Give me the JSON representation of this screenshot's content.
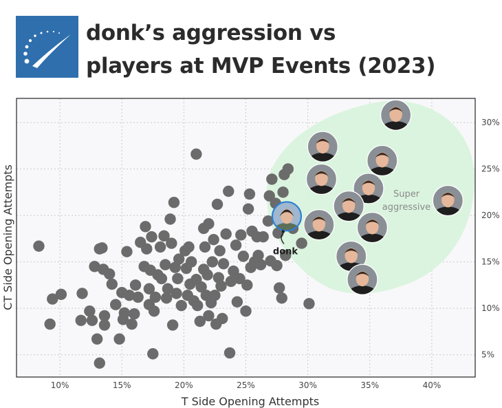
{
  "header": {
    "title_line1": "donk’s aggression vs",
    "title_line2": "players at MVP Events (2023)",
    "logo_icon": "hltv-logo-icon"
  },
  "colors": {
    "logo_bg": "#2f6fad",
    "point": "#6b6b6b",
    "zone": "#d8f3dc",
    "plot_bg": "#f8f8fa",
    "grid": "#c8c8c8",
    "highlight_ring": "#2d7fd3"
  },
  "chart_data": {
    "type": "scatter",
    "xlabel": "T Side Opening Attempts",
    "ylabel": "CT Side Opening Attempts",
    "xlim": [
      6.5,
      43.5
    ],
    "ylim": [
      2.6,
      32.6
    ],
    "x_ticks": [
      10,
      15,
      20,
      25,
      30,
      35,
      40
    ],
    "y_ticks": [
      5,
      10,
      15,
      20,
      25,
      30
    ],
    "x_tick_labels": [
      "10%",
      "15%",
      "20%",
      "25%",
      "30%",
      "35%",
      "40%"
    ],
    "y_tick_labels": [
      "5%",
      "10%",
      "15%",
      "20%",
      "25%",
      "30%"
    ],
    "grid": true,
    "zone_label_line1": "Super",
    "zone_label_line2": "aggressive",
    "highlight": {
      "label": "donk",
      "x": 28.3,
      "y": 19.9
    },
    "avatar_points": [
      {
        "x": 37.1,
        "y": 30.8
      },
      {
        "x": 31.2,
        "y": 27.4
      },
      {
        "x": 36.0,
        "y": 25.9
      },
      {
        "x": 31.1,
        "y": 23.9
      },
      {
        "x": 34.9,
        "y": 22.9
      },
      {
        "x": 41.3,
        "y": 21.6
      },
      {
        "x": 33.3,
        "y": 21.0
      },
      {
        "x": 30.9,
        "y": 19.0
      },
      {
        "x": 35.2,
        "y": 18.7
      },
      {
        "x": 33.5,
        "y": 15.6
      },
      {
        "x": 34.4,
        "y": 13.1
      }
    ],
    "points": [
      {
        "x": 8.3,
        "y": 16.7
      },
      {
        "x": 9.2,
        "y": 8.3
      },
      {
        "x": 9.4,
        "y": 11.0
      },
      {
        "x": 10.1,
        "y": 11.5
      },
      {
        "x": 11.7,
        "y": 8.7
      },
      {
        "x": 11.8,
        "y": 11.6
      },
      {
        "x": 12.4,
        "y": 9.7
      },
      {
        "x": 12.6,
        "y": 8.7
      },
      {
        "x": 12.8,
        "y": 14.5
      },
      {
        "x": 13.0,
        "y": 6.7
      },
      {
        "x": 13.2,
        "y": 4.1
      },
      {
        "x": 13.2,
        "y": 16.4
      },
      {
        "x": 13.4,
        "y": 16.5
      },
      {
        "x": 13.5,
        "y": 14.2
      },
      {
        "x": 13.6,
        "y": 9.2
      },
      {
        "x": 13.6,
        "y": 8.2
      },
      {
        "x": 14.0,
        "y": 13.7
      },
      {
        "x": 14.2,
        "y": 12.6
      },
      {
        "x": 14.5,
        "y": 10.4
      },
      {
        "x": 14.8,
        "y": 6.7
      },
      {
        "x": 15.0,
        "y": 11.7
      },
      {
        "x": 15.1,
        "y": 8.8
      },
      {
        "x": 15.2,
        "y": 9.5
      },
      {
        "x": 15.4,
        "y": 16.1
      },
      {
        "x": 15.6,
        "y": 11.4
      },
      {
        "x": 15.8,
        "y": 8.3
      },
      {
        "x": 16.0,
        "y": 9.4
      },
      {
        "x": 16.1,
        "y": 12.5
      },
      {
        "x": 16.3,
        "y": 11.2
      },
      {
        "x": 16.5,
        "y": 17.1
      },
      {
        "x": 16.8,
        "y": 14.5
      },
      {
        "x": 16.9,
        "y": 18.8
      },
      {
        "x": 17.0,
        "y": 16.4
      },
      {
        "x": 17.2,
        "y": 12.1
      },
      {
        "x": 17.2,
        "y": 10.4
      },
      {
        "x": 17.3,
        "y": 14.1
      },
      {
        "x": 17.4,
        "y": 17.7
      },
      {
        "x": 17.5,
        "y": 5.1
      },
      {
        "x": 17.6,
        "y": 9.7
      },
      {
        "x": 17.7,
        "y": 11.2
      },
      {
        "x": 17.9,
        "y": 13.6
      },
      {
        "x": 18.1,
        "y": 16.6
      },
      {
        "x": 18.2,
        "y": 13.2
      },
      {
        "x": 18.4,
        "y": 17.8
      },
      {
        "x": 18.5,
        "y": 14.7
      },
      {
        "x": 18.6,
        "y": 11.1
      },
      {
        "x": 18.7,
        "y": 12.1
      },
      {
        "x": 18.9,
        "y": 19.6
      },
      {
        "x": 19.0,
        "y": 17.0
      },
      {
        "x": 19.1,
        "y": 8.2
      },
      {
        "x": 19.2,
        "y": 21.4
      },
      {
        "x": 19.3,
        "y": 14.4
      },
      {
        "x": 19.4,
        "y": 11.6
      },
      {
        "x": 19.5,
        "y": 13.2
      },
      {
        "x": 19.6,
        "y": 15.3
      },
      {
        "x": 19.8,
        "y": 10.3
      },
      {
        "x": 20.1,
        "y": 16.2
      },
      {
        "x": 20.2,
        "y": 14.3
      },
      {
        "x": 20.3,
        "y": 11.4
      },
      {
        "x": 20.4,
        "y": 16.6
      },
      {
        "x": 20.5,
        "y": 12.6
      },
      {
        "x": 20.6,
        "y": 15.0
      },
      {
        "x": 20.8,
        "y": 10.8
      },
      {
        "x": 21.0,
        "y": 13.1
      },
      {
        "x": 21.0,
        "y": 26.6
      },
      {
        "x": 21.1,
        "y": 10.3
      },
      {
        "x": 21.3,
        "y": 8.6
      },
      {
        "x": 21.4,
        "y": 12.3
      },
      {
        "x": 21.6,
        "y": 18.6
      },
      {
        "x": 21.6,
        "y": 14.2
      },
      {
        "x": 21.7,
        "y": 16.6
      },
      {
        "x": 21.8,
        "y": 11.4
      },
      {
        "x": 21.9,
        "y": 13.6
      },
      {
        "x": 22.0,
        "y": 19.1
      },
      {
        "x": 22.0,
        "y": 9.2
      },
      {
        "x": 22.2,
        "y": 10.6
      },
      {
        "x": 22.3,
        "y": 15.0
      },
      {
        "x": 22.4,
        "y": 17.4
      },
      {
        "x": 22.5,
        "y": 11.4
      },
      {
        "x": 22.6,
        "y": 8.3
      },
      {
        "x": 22.7,
        "y": 21.2
      },
      {
        "x": 22.8,
        "y": 13.3
      },
      {
        "x": 22.9,
        "y": 16.2
      },
      {
        "x": 23.0,
        "y": 12.4
      },
      {
        "x": 23.1,
        "y": 8.9
      },
      {
        "x": 23.2,
        "y": 14.8
      },
      {
        "x": 23.4,
        "y": 18.0
      },
      {
        "x": 23.6,
        "y": 22.6
      },
      {
        "x": 23.7,
        "y": 5.2
      },
      {
        "x": 23.8,
        "y": 12.9
      },
      {
        "x": 24.0,
        "y": 14.0
      },
      {
        "x": 24.2,
        "y": 16.8
      },
      {
        "x": 24.3,
        "y": 10.7
      },
      {
        "x": 24.5,
        "y": 13.2
      },
      {
        "x": 24.6,
        "y": 17.9
      },
      {
        "x": 24.8,
        "y": 15.6
      },
      {
        "x": 25.0,
        "y": 9.7
      },
      {
        "x": 25.1,
        "y": 12.5
      },
      {
        "x": 25.2,
        "y": 20.7
      },
      {
        "x": 25.3,
        "y": 22.3
      },
      {
        "x": 25.4,
        "y": 14.4
      },
      {
        "x": 25.5,
        "y": 18.3
      },
      {
        "x": 25.7,
        "y": 15.0
      },
      {
        "x": 25.9,
        "y": 17.7
      },
      {
        "x": 26.0,
        "y": 15.7
      },
      {
        "x": 26.2,
        "y": 14.7
      },
      {
        "x": 26.4,
        "y": 17.7
      },
      {
        "x": 26.8,
        "y": 19.4
      },
      {
        "x": 26.9,
        "y": 22.1
      },
      {
        "x": 27.0,
        "y": 15.1
      },
      {
        "x": 27.1,
        "y": 23.9
      },
      {
        "x": 27.4,
        "y": 21.3
      },
      {
        "x": 27.5,
        "y": 14.6
      },
      {
        "x": 27.6,
        "y": 18.1
      },
      {
        "x": 27.7,
        "y": 12.2
      },
      {
        "x": 27.9,
        "y": 11.1
      },
      {
        "x": 28.0,
        "y": 22.5
      },
      {
        "x": 28.1,
        "y": 24.4
      },
      {
        "x": 28.2,
        "y": 20.3
      },
      {
        "x": 28.4,
        "y": 25.0
      },
      {
        "x": 28.2,
        "y": 15.7
      },
      {
        "x": 28.8,
        "y": 18.6
      },
      {
        "x": 29.5,
        "y": 17.0
      },
      {
        "x": 30.1,
        "y": 10.5
      }
    ]
  }
}
